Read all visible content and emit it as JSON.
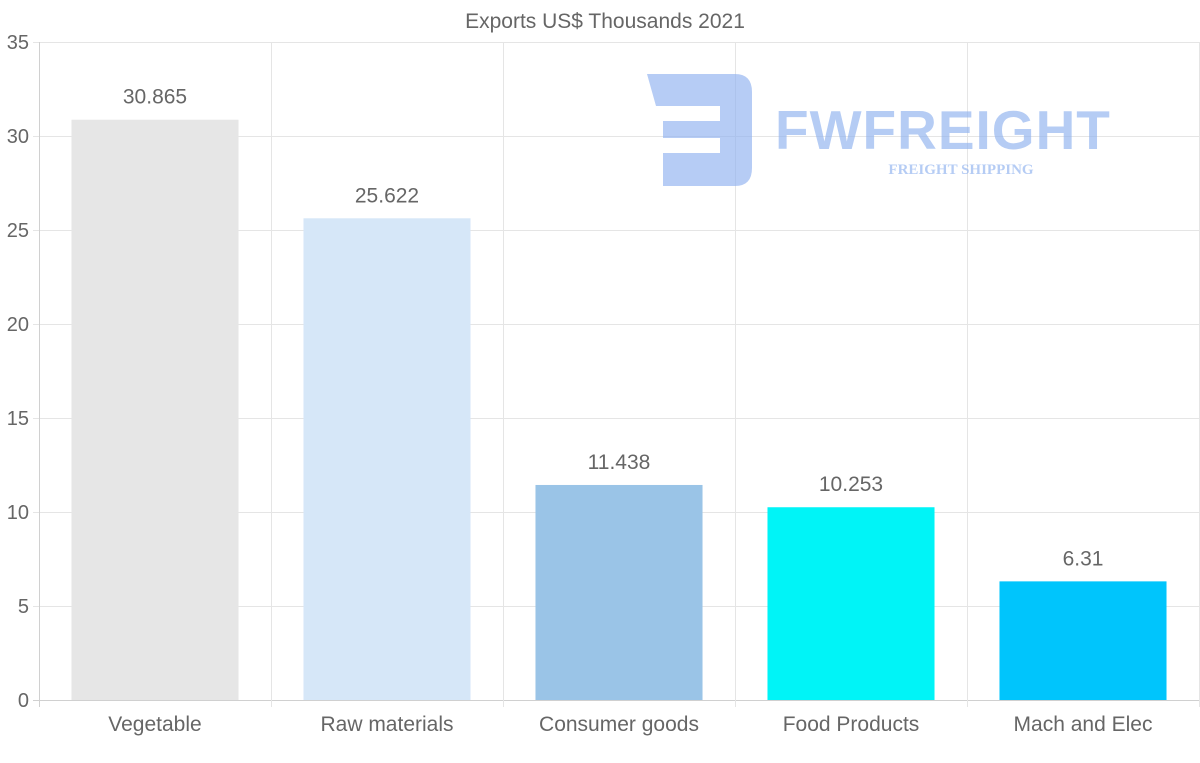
{
  "chart_data": {
    "type": "bar",
    "title": "Exports US$ Thousands 2021",
    "categories": [
      "Vegetable",
      "Raw materials",
      "Consumer goods",
      "Food Products",
      "Mach and Elec"
    ],
    "values": [
      30.865,
      25.622,
      11.438,
      10.253,
      6.31
    ],
    "value_labels": [
      "30.865",
      "25.622",
      "11.438",
      "10.253",
      "6.31"
    ],
    "colors": [
      "#e6e6e6",
      "#d6e7f8",
      "#9ac4e7",
      "#00f4f7",
      "#00c5fc"
    ],
    "ylim": [
      0,
      35
    ],
    "yticks": [
      0,
      5,
      10,
      15,
      20,
      25,
      30,
      35
    ],
    "grid": true,
    "xlabel": "",
    "ylabel": ""
  },
  "watermark": {
    "brand": "FWFREIGHT",
    "tagline": "FREIGHT SHIPPING",
    "color": "#8fb1ef"
  }
}
